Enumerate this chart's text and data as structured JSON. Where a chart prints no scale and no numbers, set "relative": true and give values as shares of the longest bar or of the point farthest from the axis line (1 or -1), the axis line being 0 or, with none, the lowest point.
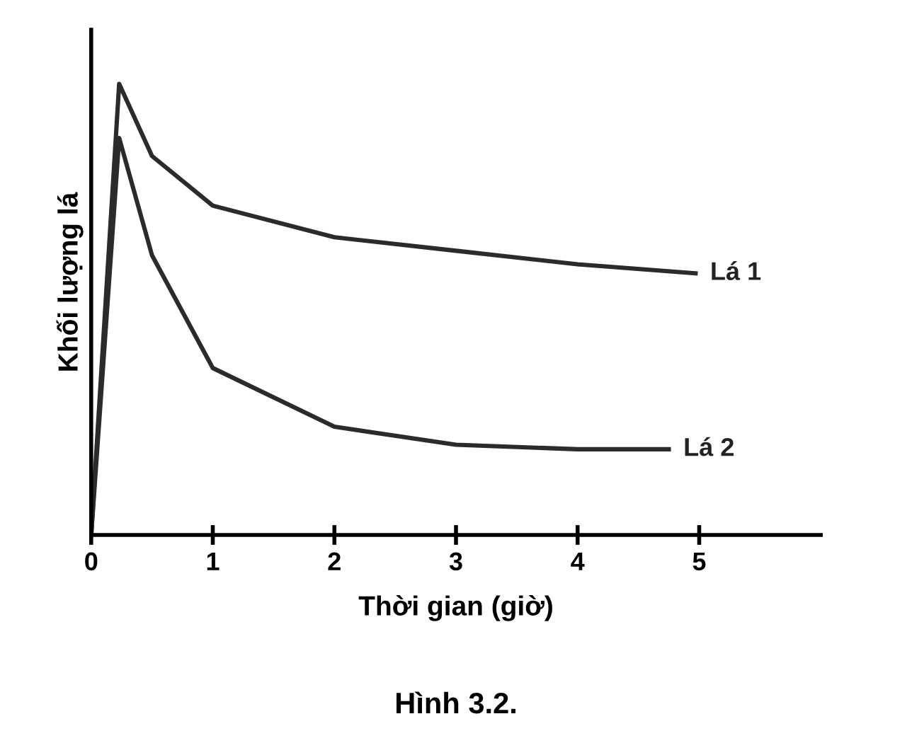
{
  "chart_data": {
    "type": "line",
    "relative": true,
    "xlabel": "Thời gian (giờ)",
    "ylabel": "Khối lượng lá",
    "xlim": [
      0,
      6
    ],
    "xticks": [
      0,
      1,
      2,
      3,
      4,
      5
    ],
    "legend": false,
    "grid": false,
    "marker": "none",
    "line_style": "solid",
    "series": [
      {
        "name": "Lá 1",
        "color": "#2b2b2b",
        "x": [
          0,
          0.23,
          0.5,
          1,
          2,
          3,
          4,
          4.97
        ],
        "values": [
          0,
          1,
          0.84,
          0.73,
          0.66,
          0.63,
          0.6,
          0.58
        ]
      },
      {
        "name": "Lá 2",
        "color": "#2b2b2b",
        "x": [
          0,
          0.23,
          0.5,
          1,
          2,
          3,
          4,
          4.75
        ],
        "values": [
          0,
          0.88,
          0.62,
          0.37,
          0.24,
          0.2,
          0.19,
          0.19
        ]
      }
    ],
    "annotations": [
      "Hình 3.2."
    ]
  }
}
